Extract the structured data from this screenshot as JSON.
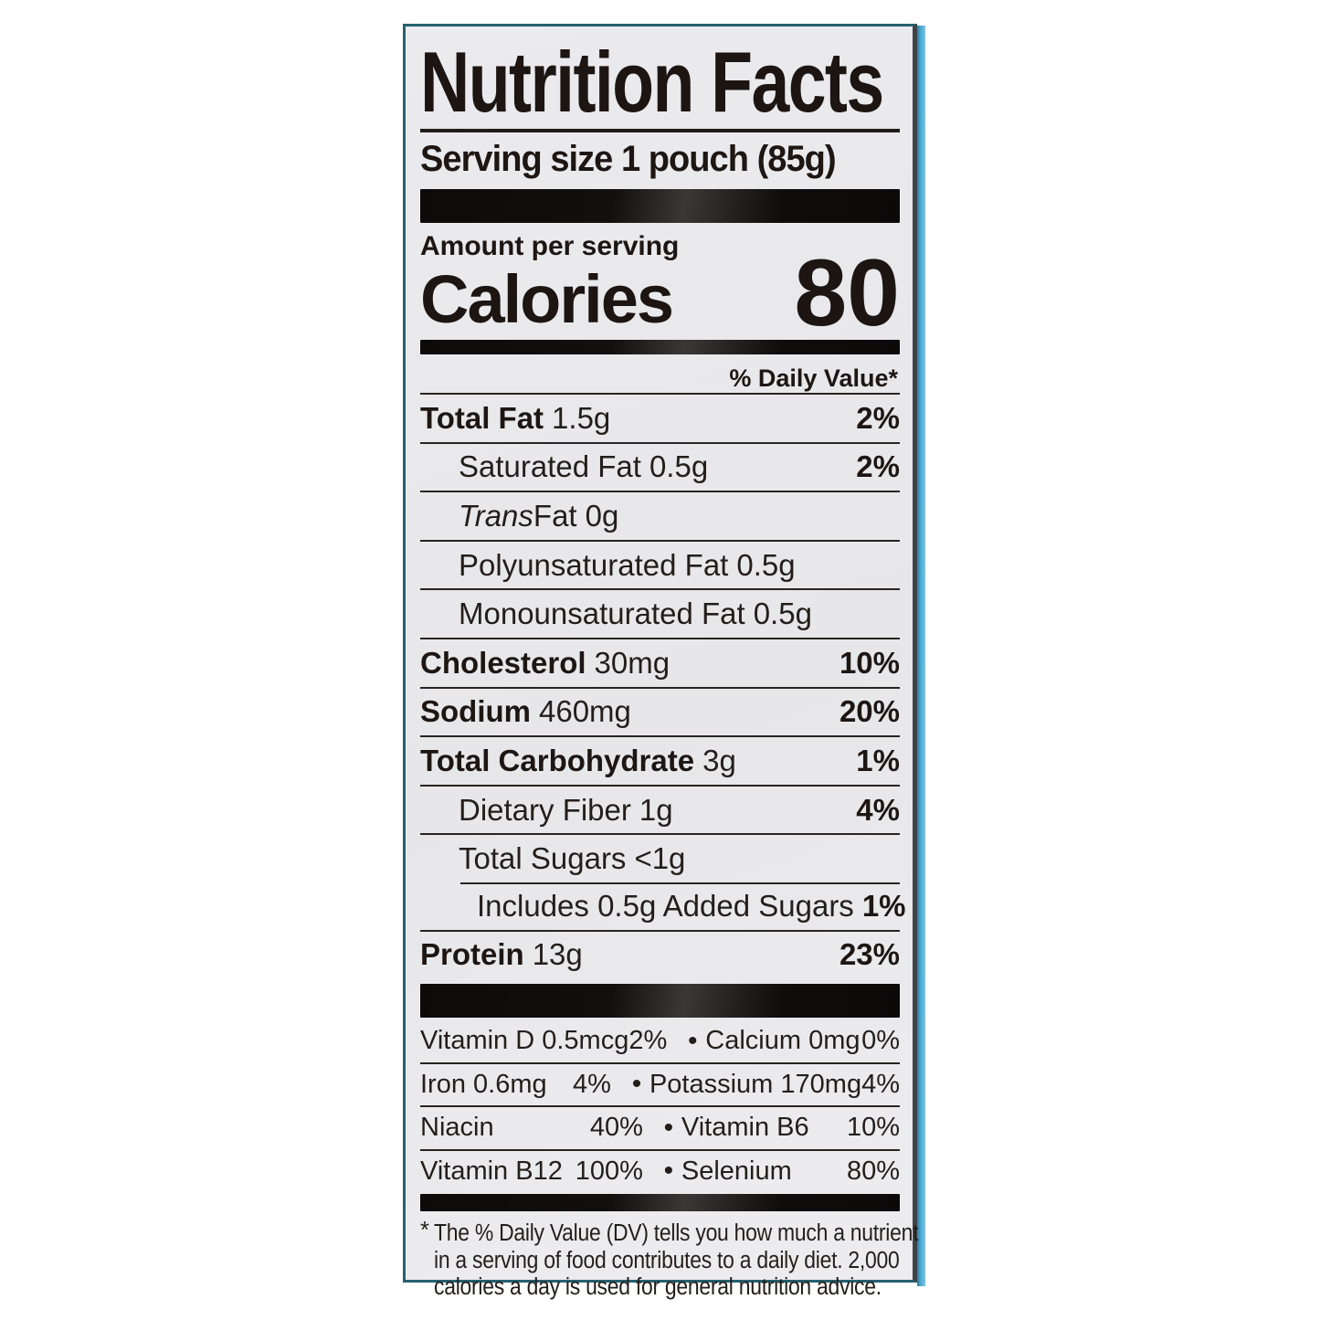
{
  "label": {
    "title": "Nutrition Facts",
    "serving_size": "Serving size 1 pouch (85g)",
    "amount_per_serving": "Amount per serving",
    "calories_label": "Calories",
    "calories_value": "80",
    "daily_value_header": "% Daily Value*",
    "rows": [
      {
        "prefix": "",
        "name": "Total Fat",
        "amount": "1.5g",
        "dv": "2%"
      },
      {
        "prefix": "",
        "name": "Saturated Fat",
        "amount": "0.5g",
        "dv": "2%"
      },
      {
        "prefix": "Trans",
        "name": " Fat",
        "amount": "0g",
        "dv": ""
      },
      {
        "prefix": "",
        "name": "Polyunsaturated Fat",
        "amount": "0.5g",
        "dv": ""
      },
      {
        "prefix": "",
        "name": "Monounsaturated Fat",
        "amount": "0.5g",
        "dv": ""
      },
      {
        "prefix": "",
        "name": "Cholesterol",
        "amount": "30mg",
        "dv": "10%"
      },
      {
        "prefix": "",
        "name": "Sodium",
        "amount": "460mg",
        "dv": "20%"
      },
      {
        "prefix": "",
        "name": "Total Carbohydrate",
        "amount": "3g",
        "dv": "1%"
      },
      {
        "prefix": "",
        "name": "Dietary Fiber",
        "amount": "1g",
        "dv": "4%"
      },
      {
        "prefix": "",
        "name": "Total Sugars",
        "amount": "<1g",
        "dv": ""
      },
      {
        "prefix": "",
        "name": "Includes 0.5g Added Sugars",
        "amount": "",
        "dv": "1%"
      },
      {
        "prefix": "",
        "name": "Protein",
        "amount": "13g",
        "dv": "23%"
      }
    ],
    "bullet": "•",
    "micronutrients": [
      {
        "left_name": "Vitamin D 0.5mcg",
        "left_dv": "2%",
        "right_name": "Calcium 0mg",
        "right_dv": "0%"
      },
      {
        "left_name": "Iron 0.6mg",
        "left_dv": "4%",
        "right_name": "Potassium 170mg",
        "right_dv": "4%"
      },
      {
        "left_name": "Niacin",
        "left_dv": "40%",
        "right_name": "Vitamin B6",
        "right_dv": "10%"
      },
      {
        "left_name": "Vitamin B12",
        "left_dv": "100%",
        "right_name": "Selenium",
        "right_dv": "80%"
      }
    ],
    "footnote_marker": "*",
    "footnote_lines": [
      "The % Daily Value (DV) tells you how much a nutrient",
      "in a serving of food contributes to a daily diet. 2,000",
      "calories a day is used for general nutrition advice."
    ]
  },
  "colors": {
    "label_background": "#e8e8eb",
    "text": "#241e1b",
    "divider_bar": "#0d0b0a",
    "border_teal": "#26616f",
    "package_cyan": "#4aa7d2"
  }
}
